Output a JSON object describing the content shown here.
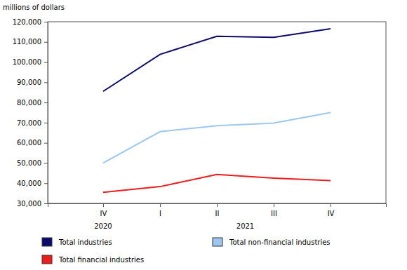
{
  "chart_data": {
    "type": "line",
    "y_label": "millions of dollars",
    "categories": [
      "IV",
      "I",
      "II",
      "III",
      "IV"
    ],
    "x_groups": [
      {
        "label": "2020",
        "count": 1
      },
      {
        "label": "2021",
        "count": 4
      }
    ],
    "series": [
      {
        "name": "Total industries",
        "color": "#0b0b6b",
        "values": [
          85500,
          103800,
          112800,
          112300,
          116500
        ]
      },
      {
        "name": "Total non-financial industries",
        "color": "#9cc8f0",
        "values": [
          50000,
          65500,
          68500,
          69800,
          75000
        ]
      },
      {
        "name": "Total financial industries",
        "color": "#ee1c1c",
        "values": [
          35500,
          38300,
          44300,
          42500,
          41300
        ]
      }
    ],
    "ylim": [
      30000,
      120000
    ],
    "yticks": [
      {
        "value": 30000,
        "label": "30,000"
      },
      {
        "value": 40000,
        "label": "40,000"
      },
      {
        "value": 50000,
        "label": "50,000"
      },
      {
        "value": 60000,
        "label": "60,000"
      },
      {
        "value": 70000,
        "label": "70,000"
      },
      {
        "value": 80000,
        "label": "80,000"
      },
      {
        "value": 90000,
        "label": "90,000"
      },
      {
        "value": 100000,
        "label": "100,000"
      },
      {
        "value": 110000,
        "label": "110,000"
      },
      {
        "value": 120000,
        "label": "120,000"
      }
    ],
    "grid": false,
    "legend": "bottom"
  }
}
